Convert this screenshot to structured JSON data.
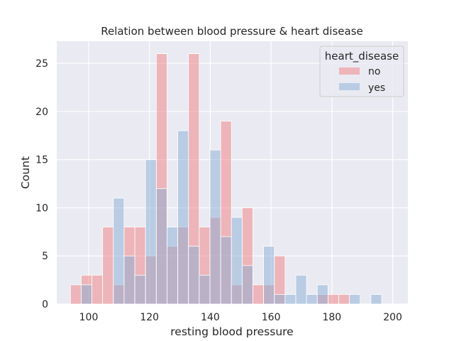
{
  "chart_data": {
    "type": "bar",
    "title": "Relation between blood pressure & heart disease",
    "xlabel": "resting blood pressure",
    "ylabel": "Count",
    "xlim": [
      89.5,
      205
    ],
    "ylim": [
      0,
      27.3
    ],
    "xticks": [
      100,
      120,
      140,
      160,
      180,
      200
    ],
    "yticks": [
      0,
      5,
      10,
      15,
      20,
      25
    ],
    "bin_width": 3.53,
    "bin_start": 94,
    "grid": true,
    "legend": {
      "title": "heart_disease",
      "placement": "top-right"
    },
    "series": [
      {
        "name": "no",
        "color": "#f08080",
        "opacity": 0.5,
        "values": [
          2,
          3,
          3,
          8,
          2,
          8,
          8,
          5,
          26,
          6,
          8,
          26,
          8,
          9,
          19,
          2,
          10,
          2,
          2,
          5,
          0,
          0,
          0,
          1,
          1,
          1,
          0,
          0,
          0,
          0
        ]
      },
      {
        "name": "yes",
        "color": "#87aed6",
        "opacity": 0.5,
        "values": [
          0,
          2,
          0,
          0,
          11,
          5,
          3,
          15,
          12,
          8,
          18,
          6,
          3,
          16,
          7,
          9,
          4,
          0,
          6,
          1,
          1,
          3,
          1,
          2,
          0,
          0,
          1,
          0,
          1,
          0
        ]
      }
    ]
  },
  "colors": {
    "background": "#eaeaf2",
    "grid": "#ffffff",
    "no": "#f08080",
    "yes": "#87aed6"
  }
}
